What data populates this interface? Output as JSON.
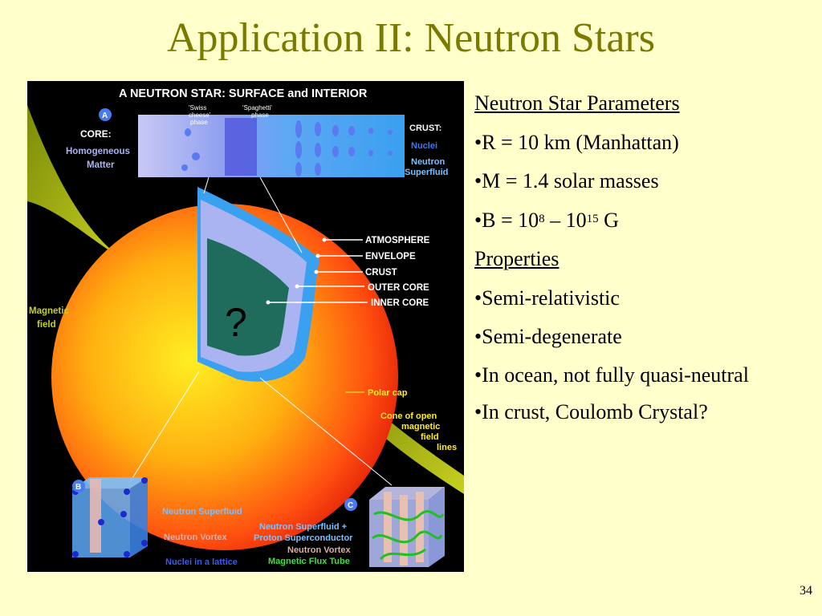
{
  "slide": {
    "title": "Application II: Neutron Stars",
    "page_number": "34"
  },
  "figure": {
    "heading": "A NEUTRON STAR:  SURFACE and INTERIOR",
    "swiss_cheese_l1": "'Swiss",
    "swiss_cheese_l2": "cheese'",
    "swiss_cheese_l3": "phase",
    "spaghetti_l1": "'Spaghetti'",
    "spaghetti_l2": "phase",
    "core_marker": "A",
    "core_label": "CORE:",
    "core_desc_l1": "Homogeneous",
    "core_desc_l2": "Matter",
    "crust_label": "CRUST:",
    "crust_nuclei": "Nuclei",
    "crust_neutron": "Neutron",
    "crust_superfluid": "Superfluid",
    "layers": [
      "ATMOSPHERE",
      "ENVELOPE",
      "CRUST",
      "OUTER CORE",
      "INNER CORE"
    ],
    "question_mark": "?",
    "magnetic_l1": "Magnetic",
    "magnetic_l2": "field",
    "polar_cap": "Polar cap",
    "cone_l1": "Cone of open",
    "cone_l2": "magnetic",
    "cone_l3": "field",
    "cone_l4": "lines",
    "b_marker": "B",
    "b_superfluid": "Neutron Superfluid",
    "b_vortex": "Neutron Vortex",
    "b_lattice": "Nuclei in a lattice",
    "c_marker": "C",
    "c_l1": "Neutron Superfluid  +",
    "c_l2": "Proton Superconductor",
    "c_l3": "Neutron Vortex",
    "c_l4": "Magnetic Flux Tube",
    "colors": {
      "title": "#7a7a00",
      "background": "#ffffcc",
      "figure_bg": "#000000",
      "inner_core": "#1f6b5c",
      "outer_core": "#aab4f0",
      "crust_blue": "#3aa0f0"
    }
  },
  "content": {
    "params_heading": "Neutron Star Parameters",
    "r_param": "•R = 10 km (Manhattan)",
    "m_param": "•M = 1.4 solar masses",
    "b_prefix": "•B = 10",
    "b_exp1": "8",
    "b_dash": " – 10",
    "b_exp2": "15",
    "b_unit": " G",
    "props_heading": "Properties",
    "prop_1": "•Semi-relativistic",
    "prop_2": "•Semi-degenerate",
    "prop_3": "•In ocean, not fully quasi-neutral",
    "prop_4": "•In crust, Coulomb Crystal?"
  }
}
